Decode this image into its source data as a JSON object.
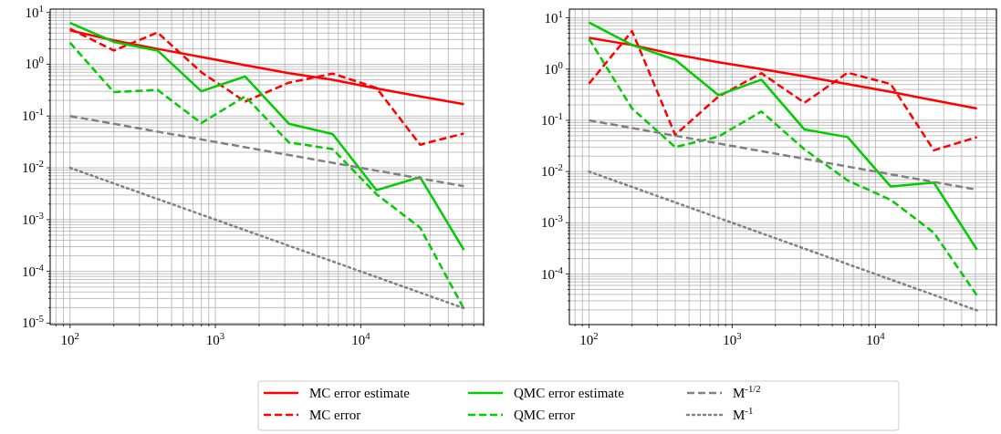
{
  "chart_data": [
    {
      "type": "line",
      "x": [
        100,
        200,
        400,
        800,
        1600,
        3200,
        6400,
        12800,
        25600,
        51200
      ],
      "log": "xy",
      "grid": true,
      "legend": "bottom",
      "xlim": [
        73,
        70000
      ],
      "ylim": [
        9.4e-06,
        11.6
      ],
      "xticks": [
        {
          "value": 100,
          "label": "10$^{2}$"
        },
        {
          "value": 1000,
          "label": "10$^{3}$"
        },
        {
          "value": 10000,
          "label": "10$^{4}$"
        }
      ],
      "yticks": [
        {
          "value": 1e-05,
          "label": "10$^{-5}$"
        },
        {
          "value": 0.0001,
          "label": "10$^{-4}$"
        },
        {
          "value": 0.001,
          "label": "10$^{-3}$"
        },
        {
          "value": 0.01,
          "label": "10$^{-2}$"
        },
        {
          "value": 0.1,
          "label": "10$^{-1}$"
        },
        {
          "value": 1,
          "label": "10$^{0}$"
        },
        {
          "value": 10,
          "label": "10$^{1}$"
        }
      ],
      "series": [
        {
          "name": "MC error estimate",
          "color": "#ff0000",
          "line_style": "solid",
          "values": [
            4.5,
            2.9,
            1.98,
            1.38,
            0.96,
            0.67,
            0.5,
            0.34,
            0.24,
            0.17
          ]
        },
        {
          "name": "MC error",
          "color": "#ff0000",
          "line_style": "dashed",
          "values": [
            4.85,
            1.84,
            4.1,
            0.7,
            0.19,
            0.44,
            0.66,
            0.35,
            0.028,
            0.046
          ]
        },
        {
          "name": "QMC error estimate",
          "color": "#00cc00",
          "line_style": "solid",
          "values": [
            6.3,
            2.7,
            1.84,
            0.3,
            0.58,
            0.071,
            0.045,
            0.0037,
            0.0066,
            0.00026
          ]
        },
        {
          "name": "QMC error",
          "color": "#00cc00",
          "line_style": "dashed",
          "values": [
            2.6,
            0.29,
            0.32,
            0.073,
            0.24,
            0.031,
            0.023,
            0.0031,
            0.0007,
            1.9e-05
          ]
        },
        {
          "name": "M$^{-1/2}$",
          "color": "#808080",
          "line_style": "dashed",
          "values": [
            0.1,
            0.0707,
            0.05,
            0.0354,
            0.025,
            0.0177,
            0.0125,
            0.00884,
            0.00625,
            0.00442
          ]
        },
        {
          "name": "M$^{-1}$",
          "color": "#808080",
          "line_style": "dotted",
          "values": [
            0.01,
            0.005,
            0.0025,
            0.00125,
            0.000625,
            0.000313,
            0.000156,
            7.8e-05,
            3.9e-05,
            1.95e-05
          ]
        }
      ]
    },
    {
      "type": "line",
      "x": [
        100,
        200,
        400,
        800,
        1600,
        3200,
        6400,
        12800,
        25600,
        51200
      ],
      "log": "xy",
      "grid": true,
      "xlim": [
        73,
        70000
      ],
      "ylim": [
        1.03e-05,
        14.8
      ],
      "xticks": [
        {
          "value": 100,
          "label": "10$^{2}$"
        },
        {
          "value": 1000,
          "label": "10$^{3}$"
        },
        {
          "value": 10000,
          "label": "10$^{4}$"
        }
      ],
      "yticks": [
        {
          "value": 0.0001,
          "label": "10$^{-4}$"
        },
        {
          "value": 0.001,
          "label": "10$^{-3}$"
        },
        {
          "value": 0.01,
          "label": "10$^{-2}$"
        },
        {
          "value": 0.1,
          "label": "10$^{-1}$"
        },
        {
          "value": 1,
          "label": "10$^{0}$"
        },
        {
          "value": 10,
          "label": "10$^{1}$"
        }
      ],
      "series": [
        {
          "color": "#ff0000",
          "line_style": "solid",
          "values": [
            4.07,
            2.95,
            1.93,
            1.36,
            1.0,
            0.72,
            0.51,
            0.36,
            0.245,
            0.17
          ]
        },
        {
          "color": "#ff0000",
          "line_style": "dashed",
          "values": [
            0.52,
            5.5,
            0.052,
            0.29,
            0.83,
            0.22,
            0.85,
            0.51,
            0.026,
            0.047
          ]
        },
        {
          "color": "#00cc00",
          "line_style": "solid",
          "values": [
            8.1,
            2.95,
            1.52,
            0.31,
            0.62,
            0.066,
            0.047,
            0.0051,
            0.0061,
            0.0003
          ]
        },
        {
          "color": "#00cc00",
          "line_style": "dashed",
          "values": [
            3.9,
            0.17,
            0.03,
            0.048,
            0.148,
            0.027,
            0.0067,
            0.0028,
            0.00064,
            3.8e-05
          ]
        },
        {
          "color": "#808080",
          "line_style": "dashed",
          "values": [
            0.1,
            0.0707,
            0.05,
            0.0354,
            0.025,
            0.0177,
            0.0125,
            0.00884,
            0.00625,
            0.00442
          ]
        },
        {
          "color": "#808080",
          "line_style": "dotted",
          "values": [
            0.01,
            0.005,
            0.0025,
            0.00125,
            0.000625,
            0.000313,
            0.000156,
            7.8e-05,
            3.9e-05,
            1.95e-05
          ]
        }
      ]
    }
  ]
}
